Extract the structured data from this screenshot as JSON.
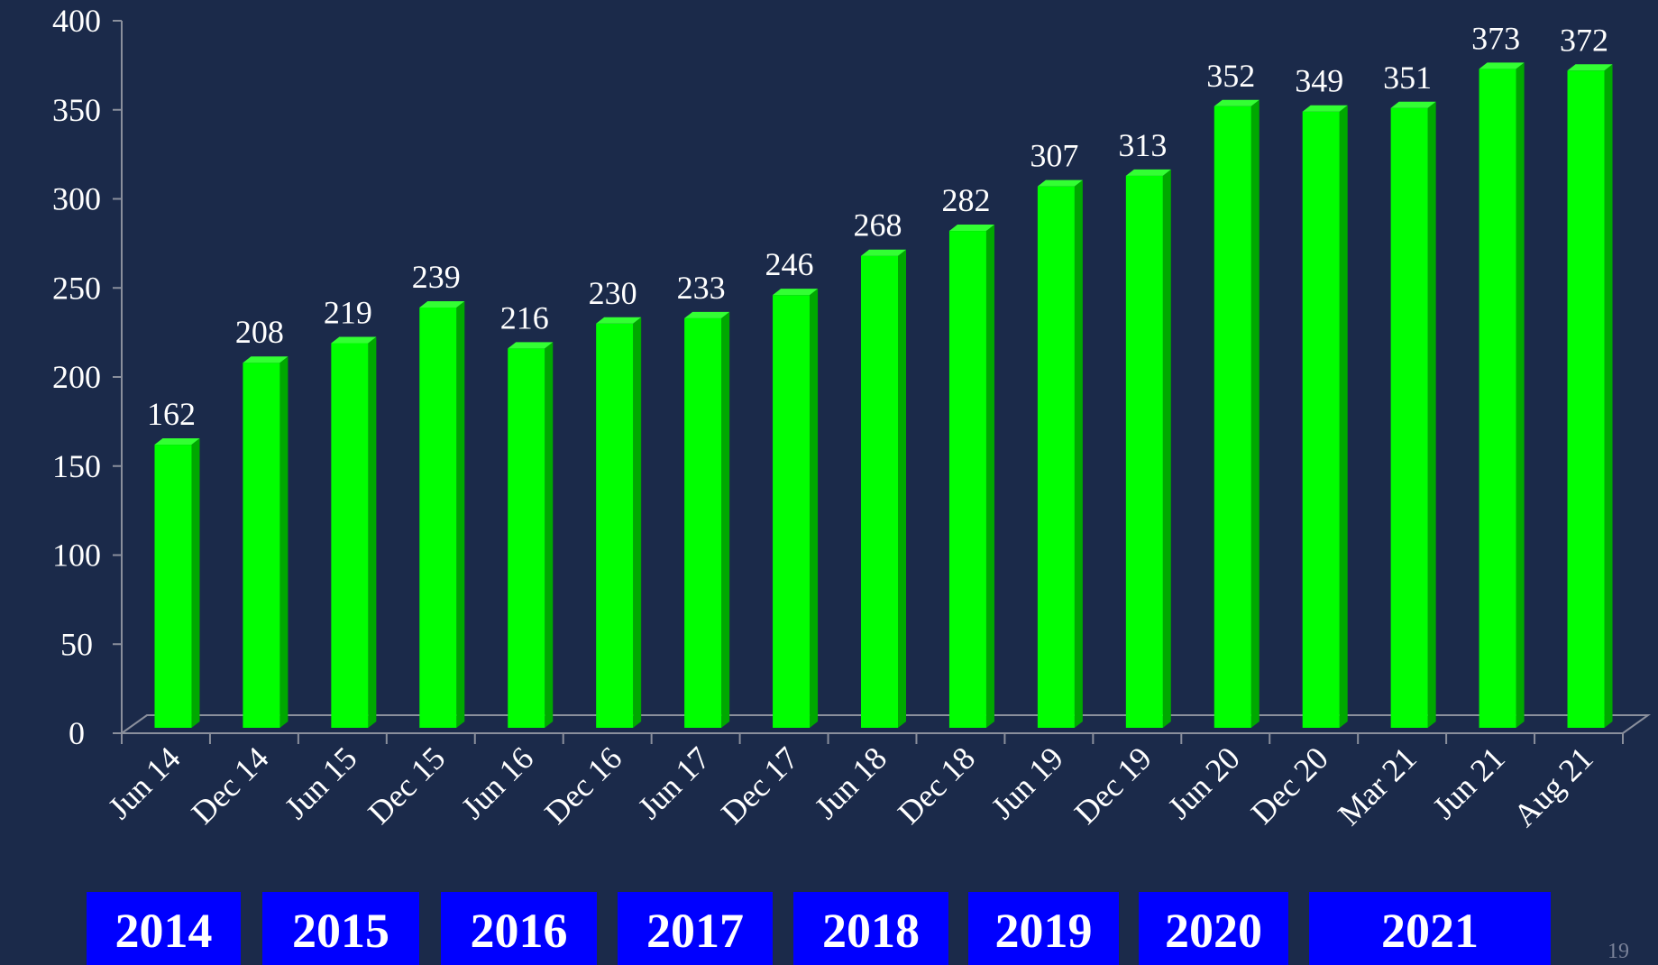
{
  "chart_data": {
    "type": "bar",
    "categories": [
      "Jun 14",
      "Dec 14",
      "Jun 15",
      "Dec 15",
      "Jun 16",
      "Dec 16",
      "Jun 17",
      "Dec 17",
      "Jun 18",
      "Dec 18",
      "Jun 19",
      "Dec 19",
      "Jun 20",
      "Dec 20",
      "Mar 21",
      "Jun 21",
      "Aug 21"
    ],
    "values": [
      162,
      208,
      219,
      239,
      216,
      230,
      233,
      246,
      268,
      282,
      307,
      313,
      352,
      349,
      351,
      373,
      372
    ],
    "color": "#00ff00",
    "ylim": [
      0,
      400
    ],
    "yticks": [
      0,
      50,
      100,
      150,
      200,
      250,
      300,
      350,
      400
    ],
    "grid": false,
    "year_labels": [
      "2014",
      "2015",
      "2016",
      "2017",
      "2018",
      "2019",
      "2020",
      "2021"
    ],
    "page_number": "19"
  }
}
